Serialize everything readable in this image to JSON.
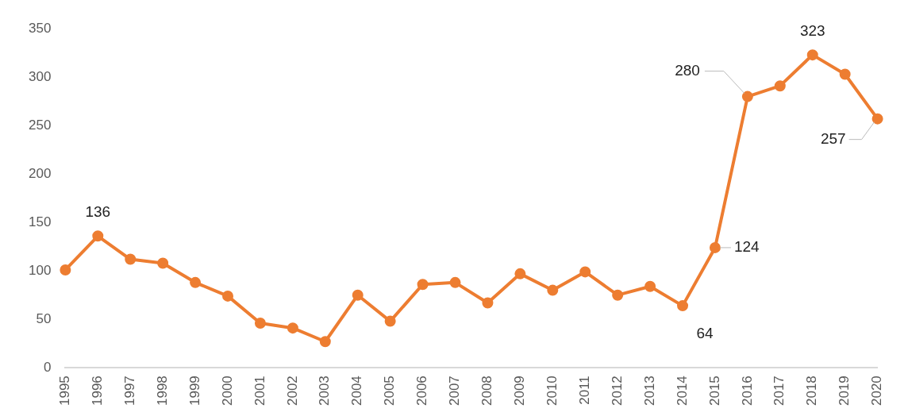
{
  "chart_data": {
    "type": "line",
    "categories": [
      "1995",
      "1996",
      "1997",
      "1998",
      "1999",
      "2000",
      "2001",
      "2002",
      "2003",
      "2004",
      "2005",
      "2006",
      "2007",
      "2008",
      "2009",
      "2010",
      "2011",
      "2012",
      "2013",
      "2014",
      "2015",
      "2016",
      "2017",
      "2018",
      "2019",
      "2020"
    ],
    "series": [
      {
        "color": "#ed7d31",
        "values": [
          101,
          136,
          112,
          108,
          88,
          74,
          46,
          41,
          27,
          75,
          48,
          86,
          88,
          67,
          97,
          80,
          99,
          75,
          84,
          64,
          124,
          280,
          291,
          323,
          303,
          257
        ],
        "value_labels": [
          null,
          "136",
          null,
          null,
          null,
          null,
          null,
          null,
          null,
          null,
          null,
          null,
          null,
          null,
          null,
          null,
          null,
          null,
          null,
          "64",
          "124",
          "280",
          null,
          "323",
          null,
          "257"
        ]
      }
    ],
    "ylim": [
      0,
      350
    ],
    "yticks": [
      0,
      50,
      100,
      150,
      200,
      250,
      300,
      350
    ],
    "grid": false,
    "legend": false,
    "marker": "circle",
    "line_style": "solid"
  }
}
